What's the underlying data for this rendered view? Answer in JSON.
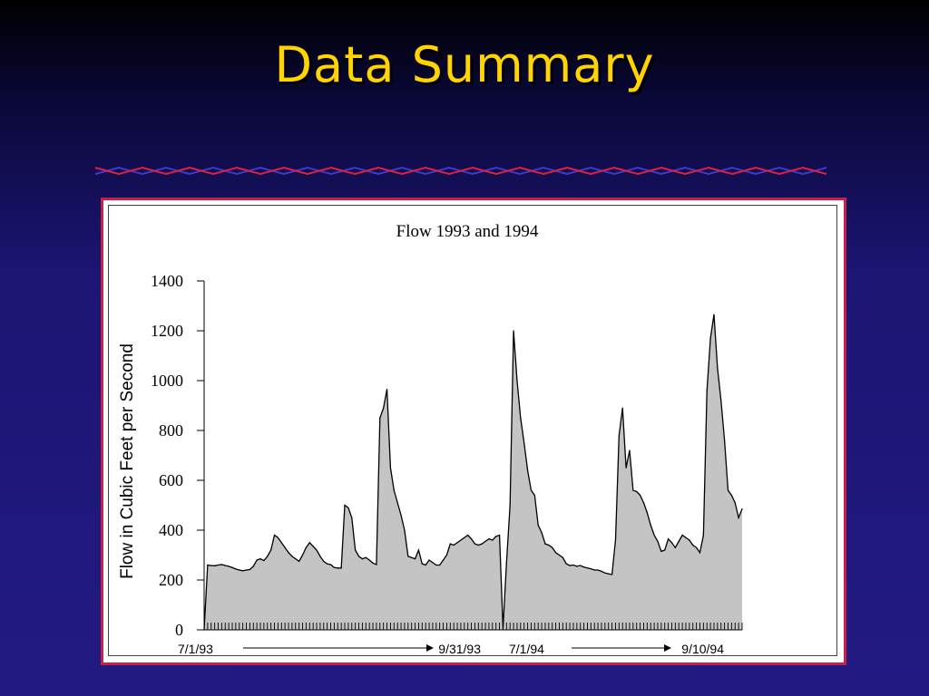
{
  "slide": {
    "title": "Data Summary"
  },
  "colors": {
    "title": "#ffd400",
    "frame_border": "#c8204a",
    "divider_red": "#e0203c",
    "divider_blue": "#3a3ad0",
    "area_fill": "#c4c4c4",
    "line": "#000000"
  },
  "chart_data": {
    "type": "area",
    "title": "Flow 1993 and 1994",
    "ylabel": "Flow in Cubic Feet per Second",
    "ylim": [
      0,
      1400
    ],
    "yticks": [
      0,
      200,
      400,
      600,
      800,
      1000,
      1200,
      1400
    ],
    "grid": false,
    "date_labels": [
      "7/1/93",
      "9/31/93",
      "7/1/94",
      "9/10/94"
    ],
    "series": [
      {
        "values": [
          0,
          260,
          258,
          257,
          260,
          262,
          258,
          255,
          250,
          244,
          240,
          237,
          240,
          242,
          255,
          280,
          285,
          278,
          295,
          320,
          380,
          370,
          350,
          330,
          310,
          295,
          285,
          275,
          300,
          330,
          350,
          335,
          320,
          295,
          275,
          265,
          262,
          250,
          248,
          248,
          500,
          490,
          450,
          320,
          295,
          285,
          290,
          280,
          268,
          262,
          850,
          890,
          965,
          650,
          560,
          510,
          460,
          400,
          295,
          290,
          285,
          320,
          265,
          260,
          280,
          270,
          260,
          260,
          280,
          300,
          345,
          340,
          350,
          360,
          370,
          380,
          365,
          345,
          340,
          345,
          355,
          365,
          360,
          375,
          380,
          5,
          270,
          500,
          1200,
          1000,
          850,
          750,
          640,
          560,
          540,
          420,
          390,
          345,
          340,
          330,
          310,
          300,
          290,
          265,
          258,
          260,
          255,
          258,
          252,
          248,
          245,
          240,
          240,
          235,
          228,
          225,
          222,
          360,
          780,
          890,
          650,
          720,
          560,
          555,
          540,
          510,
          470,
          420,
          380,
          355,
          315,
          320,
          365,
          350,
          330,
          355,
          380,
          370,
          360,
          340,
          330,
          310,
          380,
          960,
          1170,
          1265,
          1050,
          920,
          760,
          560,
          540,
          510,
          450,
          485
        ]
      }
    ]
  }
}
